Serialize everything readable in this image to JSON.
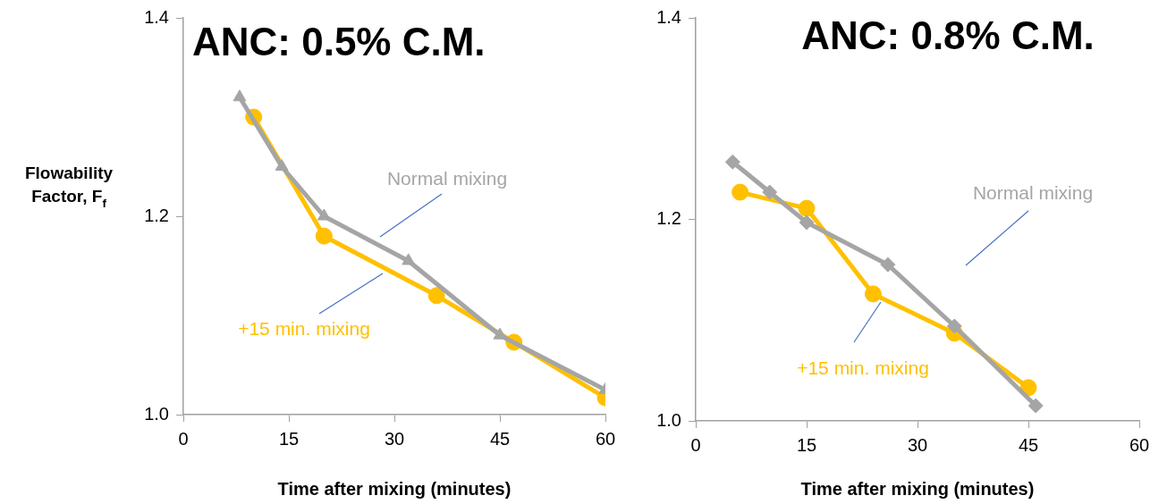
{
  "chart_data": [
    {
      "type": "line",
      "title": "ANC: 0.5% C.M.",
      "xlabel": "Time after mixing (minutes)",
      "ylabel": "Flowability Factor, F$_{f}$",
      "xlim": [
        0,
        60
      ],
      "xticks": [
        0,
        15,
        30,
        45,
        60
      ],
      "ylim": [
        1.0,
        1.4
      ],
      "yticks": [
        {
          "value": 1.0,
          "label": "1.0"
        },
        {
          "value": 1.2,
          "label": "1.2"
        },
        {
          "value": 1.4,
          "label": "1.4"
        }
      ],
      "grid": false,
      "legend": false,
      "line_style": "solid",
      "series": [
        {
          "name": "Normal mixing",
          "color": "#a5a5a5",
          "marker": "triangle",
          "x": [
            8,
            14,
            20,
            32,
            45,
            60
          ],
          "values": [
            1.32,
            1.25,
            1.2,
            1.155,
            1.08,
            1.025
          ]
        },
        {
          "name": "+15 min. mixing",
          "color": "#ffc000",
          "marker": "circle",
          "x": [
            10,
            20,
            36,
            47,
            60
          ],
          "values": [
            1.3,
            1.18,
            1.12,
            1.073,
            1.017
          ]
        }
      ]
    },
    {
      "type": "line",
      "title": "ANC: 0.8% C.M.",
      "xlabel": "Time after mixing (minutes)",
      "xlim": [
        0,
        60
      ],
      "xticks": [
        0,
        15,
        30,
        45,
        60
      ],
      "ylim": [
        1.0,
        1.4
      ],
      "yticks": [
        {
          "value": 1.0,
          "label": "1.0"
        },
        {
          "value": 1.2,
          "label": "1.2"
        },
        {
          "value": 1.4,
          "label": "1.4"
        }
      ],
      "grid": false,
      "legend": false,
      "line_style": "solid",
      "series": [
        {
          "name": "Normal mixing",
          "color": "#a5a5a5",
          "marker": "diamond",
          "x": [
            5,
            10,
            15,
            26,
            35,
            46
          ],
          "values": [
            1.257,
            1.227,
            1.197,
            1.155,
            1.094,
            1.015
          ]
        },
        {
          "name": "+15 min. mixing",
          "color": "#ffc000",
          "marker": "circle",
          "x": [
            6,
            15,
            24,
            35,
            45
          ],
          "values": [
            1.227,
            1.211,
            1.126,
            1.087,
            1.033
          ]
        }
      ]
    }
  ]
}
